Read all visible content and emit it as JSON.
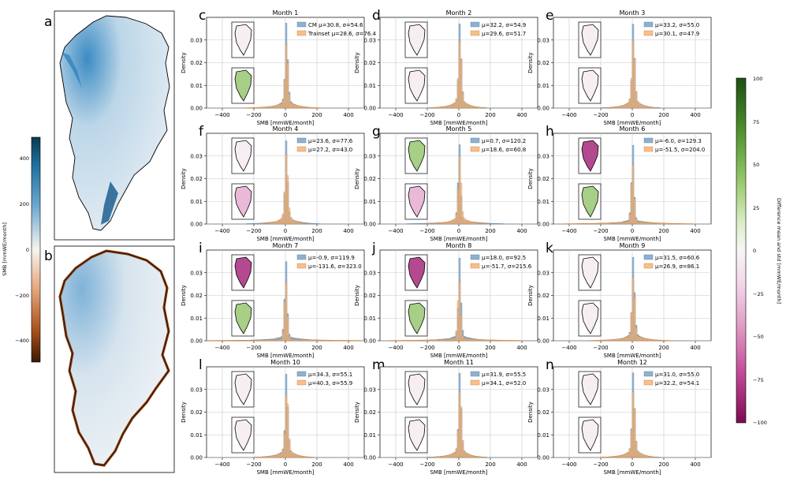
{
  "colors": {
    "cm": "#8fb1cf",
    "cm_edge": "#4a7ba6",
    "train": "#f6bf8c",
    "train_edge": "#cf7a2d",
    "ice_blue": "#2f80b8",
    "ice_light": "#dbe6ee",
    "melt": "#8a3d10"
  },
  "maps": {
    "a": {
      "letter": "a"
    },
    "b": {
      "letter": "b"
    },
    "smb_colorbar": {
      "label": "SMB [mmWE/month]",
      "ticks": [
        "400",
        "200",
        "0",
        "−200",
        "−400"
      ]
    }
  },
  "diff_colorbar": {
    "label": "Difference mean and std [mmWE/month]",
    "ticks": [
      "100",
      "75",
      "50",
      "25",
      "0",
      "−25",
      "−50",
      "−75",
      "−100"
    ]
  },
  "chart_data": [
    {
      "type": "bar",
      "letter": "c",
      "title": "Month 1",
      "xlabel": "SMB [mmWE/month]",
      "ylabel": "Density",
      "xlim": [
        -500,
        500
      ],
      "ylim": [
        0,
        0.04
      ],
      "xticks": [
        "−400",
        "−200",
        "0",
        "200",
        "400"
      ],
      "yticks": [
        "0.00",
        "0.01",
        "0.02",
        "0.03"
      ],
      "series": [
        {
          "name": "CM μ=30.8, σ=54.6",
          "label": "CM μ=30.8, σ=54.6",
          "mean": 30.8,
          "std": 54.6
        },
        {
          "name": "Trainset μ=28.6, σ=76.4",
          "label": "Trainset μ=28.6, σ=76.4",
          "mean": 28.6,
          "std": 76.4
        }
      ],
      "thumb_top": "neutral",
      "thumb_bottom": "green"
    },
    {
      "type": "bar",
      "letter": "d",
      "title": "Month 2",
      "xlabel": "SMB [mmWE/month]",
      "ylabel": "Density",
      "xlim": [
        -500,
        500
      ],
      "ylim": [
        0,
        0.04
      ],
      "xticks": [
        "−400",
        "−200",
        "0",
        "200",
        "400"
      ],
      "yticks": [
        "0.00",
        "0.01",
        "0.02",
        "0.03"
      ],
      "series": [
        {
          "name": "CM",
          "label": "μ=32.2, σ=54.9",
          "mean": 32.2,
          "std": 54.9
        },
        {
          "name": "Trainset",
          "label": "μ=29.6, σ=51.7",
          "mean": 29.6,
          "std": 51.7
        }
      ],
      "thumb_top": "neutral",
      "thumb_bottom": "neutral"
    },
    {
      "type": "bar",
      "letter": "e",
      "title": "Month 3",
      "xlabel": "SMB [mmWE/month]",
      "ylabel": "Density",
      "xlim": [
        -500,
        500
      ],
      "ylim": [
        0,
        0.04
      ],
      "xticks": [
        "−400",
        "−200",
        "0",
        "200",
        "400"
      ],
      "yticks": [
        "0.00",
        "0.01",
        "0.02",
        "0.03"
      ],
      "series": [
        {
          "name": "CM",
          "label": "μ=33.2, σ=55.0",
          "mean": 33.2,
          "std": 55.0
        },
        {
          "name": "Trainset",
          "label": "μ=30.1, σ=47.9",
          "mean": 30.1,
          "std": 47.9
        }
      ],
      "thumb_top": "neutral",
      "thumb_bottom": "neutral"
    },
    {
      "type": "bar",
      "letter": "f",
      "title": "Month 4",
      "xlabel": "SMB [mmWE/month]",
      "ylabel": "Density",
      "xlim": [
        -500,
        500
      ],
      "ylim": [
        0,
        0.04
      ],
      "xticks": [
        "−400",
        "−200",
        "0",
        "200",
        "400"
      ],
      "yticks": [
        "0.00",
        "0.01",
        "0.02",
        "0.03"
      ],
      "series": [
        {
          "name": "CM",
          "label": "μ=23.6, σ=77.6",
          "mean": 23.6,
          "std": 77.6
        },
        {
          "name": "Trainset",
          "label": "μ=27.2, σ=43.0",
          "mean": 27.2,
          "std": 43.0
        }
      ],
      "thumb_top": "neutral",
      "thumb_bottom": "pink"
    },
    {
      "type": "bar",
      "letter": "g",
      "title": "Month 5",
      "xlabel": "SMB [mmWE/month]",
      "ylabel": "Density",
      "xlim": [
        -500,
        500
      ],
      "ylim": [
        0,
        0.04
      ],
      "xticks": [
        "−400",
        "−200",
        "0",
        "200",
        "400"
      ],
      "yticks": [
        "0.00",
        "0.01",
        "0.02",
        "0.03"
      ],
      "series": [
        {
          "name": "CM",
          "label": "μ=0.7, σ=120.2",
          "mean": 0.7,
          "std": 120.2
        },
        {
          "name": "Trainset",
          "label": "μ=18.6, σ=60.8",
          "mean": 18.6,
          "std": 60.8
        }
      ],
      "thumb_top": "green",
      "thumb_bottom": "pink"
    },
    {
      "type": "bar",
      "letter": "h",
      "title": "Month 6",
      "xlabel": "SMB [mmWE/month]",
      "ylabel": "Density",
      "xlim": [
        -500,
        500
      ],
      "ylim": [
        0,
        0.04
      ],
      "xticks": [
        "−400",
        "−200",
        "0",
        "200",
        "400"
      ],
      "yticks": [
        "0.00",
        "0.01",
        "0.02",
        "0.03"
      ],
      "series": [
        {
          "name": "CM",
          "label": "μ=-6.0, σ=129.3",
          "mean": -6.0,
          "std": 129.3
        },
        {
          "name": "Trainset",
          "label": "μ=-51.5, σ=204.0",
          "mean": -51.5,
          "std": 204.0
        }
      ],
      "thumb_top": "magenta",
      "thumb_bottom": "green"
    },
    {
      "type": "bar",
      "letter": "i",
      "title": "Month 7",
      "xlabel": "SMB [mmWE/month]",
      "ylabel": "Density",
      "xlim": [
        -500,
        500
      ],
      "ylim": [
        0,
        0.04
      ],
      "xticks": [
        "−400",
        "−200",
        "0",
        "200",
        "400"
      ],
      "yticks": [
        "0.00",
        "0.01",
        "0.02",
        "0.03"
      ],
      "series": [
        {
          "name": "CM",
          "label": "μ=-0.9, σ=119.9",
          "mean": -0.9,
          "std": 119.9
        },
        {
          "name": "Trainset",
          "label": "μ=-131.6, σ=323.0",
          "mean": -131.6,
          "std": 323.0
        }
      ],
      "thumb_top": "magenta",
      "thumb_bottom": "green"
    },
    {
      "type": "bar",
      "letter": "j",
      "title": "Month 8",
      "xlabel": "SMB [mmWE/month]",
      "ylabel": "Density",
      "xlim": [
        -500,
        500
      ],
      "ylim": [
        0,
        0.04
      ],
      "xticks": [
        "−400",
        "−200",
        "0",
        "200",
        "400"
      ],
      "yticks": [
        "0.00",
        "0.01",
        "0.02",
        "0.03"
      ],
      "series": [
        {
          "name": "CM",
          "label": "μ=18.0, σ=92.5",
          "mean": 18.0,
          "std": 92.5
        },
        {
          "name": "Trainset",
          "label": "μ=-51.7, σ=215.6",
          "mean": -51.7,
          "std": 215.6
        }
      ],
      "thumb_top": "magenta",
      "thumb_bottom": "green"
    },
    {
      "type": "bar",
      "letter": "k",
      "title": "Month 9",
      "xlabel": "SMB [mmWE/month]",
      "ylabel": "Density",
      "xlim": [
        -500,
        500
      ],
      "ylim": [
        0,
        0.04
      ],
      "xticks": [
        "−400",
        "−200",
        "0",
        "200",
        "400"
      ],
      "yticks": [
        "0.00",
        "0.01",
        "0.02",
        "0.03"
      ],
      "series": [
        {
          "name": "CM",
          "label": "μ=31.5, σ=60.6",
          "mean": 31.5,
          "std": 60.6
        },
        {
          "name": "Trainset",
          "label": "μ=26.9, σ=86.1",
          "mean": 26.9,
          "std": 86.1
        }
      ],
      "thumb_top": "neutral",
      "thumb_bottom": "neutral"
    },
    {
      "type": "bar",
      "letter": "l",
      "title": "Month 10",
      "xlabel": "SMB [mmWE/month]",
      "ylabel": "Density",
      "xlim": [
        -500,
        500
      ],
      "ylim": [
        0,
        0.04
      ],
      "xticks": [
        "−400",
        "−200",
        "0",
        "200",
        "400"
      ],
      "yticks": [
        "0.00",
        "0.01",
        "0.02",
        "0.03"
      ],
      "series": [
        {
          "name": "CM",
          "label": "μ=34.3, σ=55.1",
          "mean": 34.3,
          "std": 55.1
        },
        {
          "name": "Trainset",
          "label": "μ=40.3, σ=55.9",
          "mean": 40.3,
          "std": 55.9
        }
      ],
      "thumb_top": "neutral",
      "thumb_bottom": "neutral"
    },
    {
      "type": "bar",
      "letter": "m",
      "title": "Month 11",
      "xlabel": "SMB [mmWE/month]",
      "ylabel": "Density",
      "xlim": [
        -500,
        500
      ],
      "ylim": [
        0,
        0.04
      ],
      "xticks": [
        "−400",
        "−200",
        "0",
        "200",
        "400"
      ],
      "yticks": [
        "0.00",
        "0.01",
        "0.02",
        "0.03"
      ],
      "series": [
        {
          "name": "CM",
          "label": "μ=31.9, σ=55.5",
          "mean": 31.9,
          "std": 55.5
        },
        {
          "name": "Trainset",
          "label": "μ=34.1, σ=52.0",
          "mean": 34.1,
          "std": 52.0
        }
      ],
      "thumb_top": "neutral",
      "thumb_bottom": "neutral"
    },
    {
      "type": "bar",
      "letter": "n",
      "title": "Month 12",
      "xlabel": "SMB [mmWE/month]",
      "ylabel": "Density",
      "xlim": [
        -500,
        500
      ],
      "ylim": [
        0,
        0.04
      ],
      "xticks": [
        "−400",
        "−200",
        "0",
        "200",
        "400"
      ],
      "yticks": [
        "0.00",
        "0.01",
        "0.02",
        "0.03"
      ],
      "series": [
        {
          "name": "CM",
          "label": "μ=31.0, σ=55.0",
          "mean": 31.0,
          "std": 55.0
        },
        {
          "name": "Trainset",
          "label": "μ=32.2, σ=54.1",
          "mean": 32.2,
          "std": 54.1
        }
      ],
      "thumb_top": "neutral",
      "thumb_bottom": "neutral"
    }
  ]
}
